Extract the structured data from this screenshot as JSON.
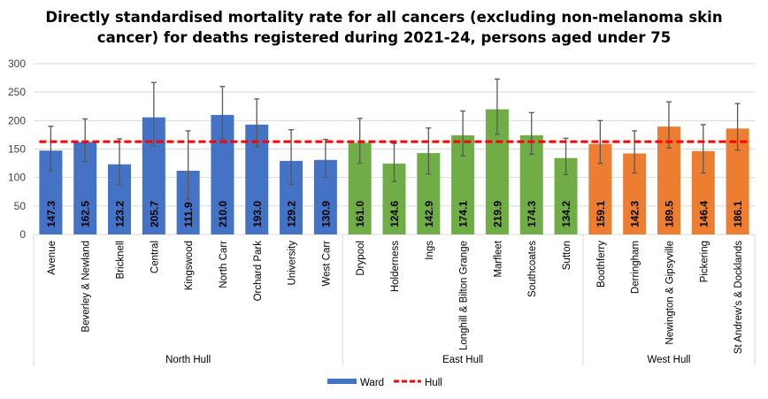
{
  "chart_data": {
    "type": "bar",
    "title_line1": "Directly standardised mortality rate for all cancers (excluding non-melanoma skin",
    "title_line2": "cancer)  for deaths registered during 2021-24, persons aged under 75",
    "xlabel": "",
    "ylabel": "",
    "ylim": [
      0,
      300
    ],
    "yticks": [
      "0",
      "50",
      "100",
      "150",
      "200",
      "250",
      "300"
    ],
    "grid": true,
    "legend_position": "bottom",
    "legend": [
      {
        "label": "Ward",
        "kind": "bar",
        "color": "#4472C4"
      },
      {
        "label": "Hull",
        "kind": "dashed-line",
        "color": "#FF0000"
      }
    ],
    "reference_line": {
      "name": "Hull",
      "value": 163
    },
    "groups": [
      {
        "name": "North Hull",
        "color": "#4472C4",
        "categories": [
          "Avenue",
          "Beverley & Newland",
          "Bricknell",
          "Central",
          "Kingswood",
          "North Carr",
          "Orchard Park",
          "University",
          "West Carr"
        ],
        "values": [
          147.3,
          162.5,
          123.2,
          205.7,
          111.9,
          210.0,
          193.0,
          129.2,
          130.9
        ],
        "lower": [
          112,
          128,
          88,
          155,
          62,
          168,
          154,
          88,
          100
        ],
        "upper": [
          190,
          203,
          168,
          267,
          182,
          260,
          238,
          184,
          167
        ]
      },
      {
        "name": "East Hull",
        "color": "#70AD47",
        "categories": [
          "Drypool",
          "Holderness",
          "Ings",
          "Longhill & Bilton Grange",
          "Marfleet",
          "Southcoates",
          "Sutton"
        ],
        "values": [
          161.0,
          124.6,
          142.9,
          174.1,
          219.9,
          174.3,
          134.2
        ],
        "lower": [
          125,
          93,
          106,
          138,
          176,
          141,
          105
        ],
        "upper": [
          204,
          160,
          187,
          217,
          273,
          214,
          169
        ]
      },
      {
        "name": "West Hull",
        "color": "#ED7D31",
        "categories": [
          "Boothferry",
          "Derringham",
          "Newington & Gipsyville",
          "Pickering",
          "St Andrew's & Docklands"
        ],
        "values": [
          159.1,
          142.3,
          189.5,
          146.4,
          186.1
        ],
        "lower": [
          125,
          108,
          152,
          108,
          148
        ],
        "upper": [
          200,
          182,
          233,
          193,
          230
        ]
      }
    ]
  }
}
